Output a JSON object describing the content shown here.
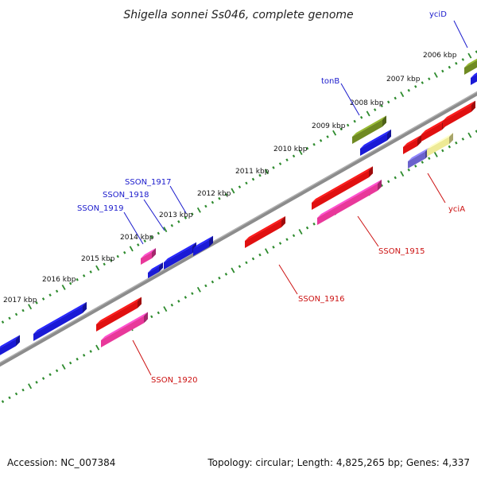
{
  "title": "Shigella sonnei Ss046, complete genome",
  "footer": {
    "accession": "Accession: NC_007384",
    "summary": "Topology: circular; Length: 4,825,265 bp; Genes: 4,337"
  },
  "colors": {
    "backbone": "#8c8c8c",
    "ticks": "#2e8b2e",
    "blue": "#1a1ad6",
    "red": "#e01010",
    "pink": "#e8389a",
    "olive": "#6f8a22",
    "yellow": "#eeea96",
    "purple": "#6a62cc"
  },
  "kbp_labels": [
    "2006 kbp",
    "2007 kbp",
    "2008 kbp",
    "2009 kbp",
    "2010 kbp",
    "2011 kbp",
    "2012 kbp",
    "2013 kbp",
    "2014 kbp",
    "2015 kbp",
    "2016 kbp",
    "2017 kbp"
  ],
  "gene_labels": [
    {
      "text": "yciD",
      "color": "blue"
    },
    {
      "text": "tonB",
      "color": "blue"
    },
    {
      "text": "SSON_1917",
      "color": "blue"
    },
    {
      "text": "SSON_1918",
      "color": "blue"
    },
    {
      "text": "SSON_1919",
      "color": "blue"
    },
    {
      "text": "yciA",
      "color": "red"
    },
    {
      "text": "SSON_1915",
      "color": "red"
    },
    {
      "text": "SSON_1916",
      "color": "red"
    },
    {
      "text": "SSON_1920",
      "color": "red"
    }
  ]
}
